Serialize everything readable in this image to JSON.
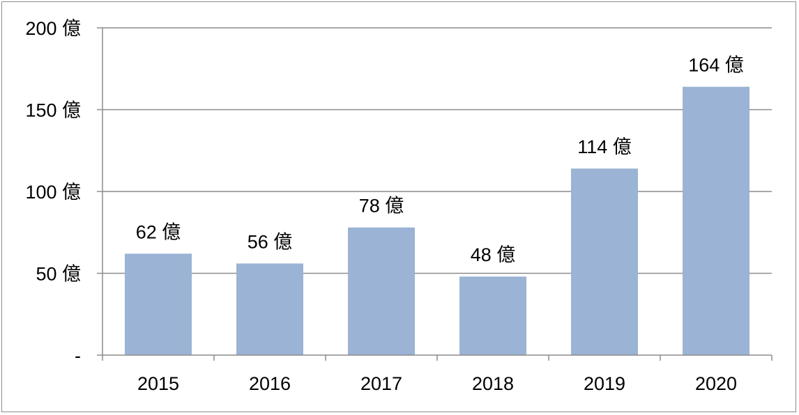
{
  "chart_data": {
    "type": "bar",
    "categories": [
      "2015",
      "2016",
      "2017",
      "2018",
      "2019",
      "2020"
    ],
    "values": [
      62,
      56,
      78,
      48,
      114,
      164
    ],
    "data_labels": [
      "62 億",
      "56 億",
      "78 億",
      "48 億",
      "114 億",
      "164 億"
    ],
    "y_ticks": [
      0,
      50,
      100,
      150,
      200
    ],
    "y_tick_labels": [
      "-",
      "50 億",
      "100 億",
      "150 億",
      "200 億"
    ],
    "ylim": [
      0,
      200
    ],
    "grid": true,
    "legend": "none",
    "bar_color": "#9bb3d4",
    "grid_color": "#8c8c8c"
  }
}
